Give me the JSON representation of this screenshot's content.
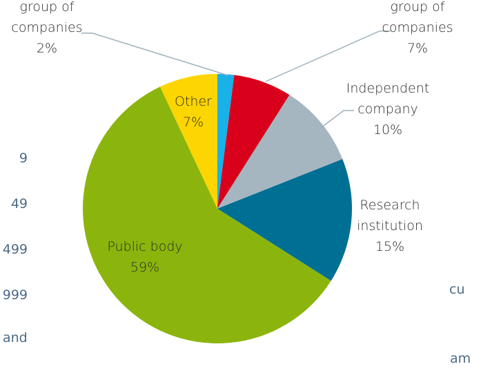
{
  "chart_data": {
    "type": "pie",
    "categories": [
      "group of companies",
      "group of companies",
      "Independent company",
      "Research institution",
      "Public body",
      "Other"
    ],
    "values": [
      2,
      7,
      10,
      15,
      59,
      7
    ],
    "value_labels": [
      "2%",
      "7%",
      "10%",
      "15%",
      "59%",
      "7%"
    ],
    "colors": [
      "#1ab0e8",
      "#d9001b",
      "#a6b6c0",
      "#006f94",
      "#8bb50d",
      "#fdd500"
    ],
    "fragments": [
      "9",
      "49",
      "499",
      "999",
      "and",
      "cu",
      "am"
    ]
  }
}
